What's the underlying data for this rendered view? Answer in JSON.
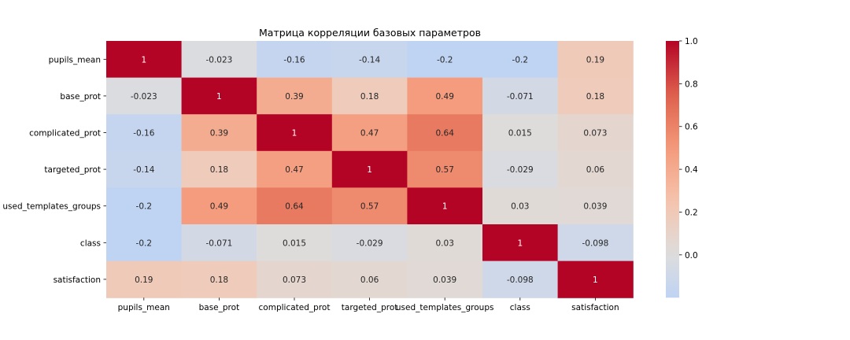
{
  "chart_data": {
    "type": "heatmap",
    "title": "Матрица корреляции базовых параметров",
    "xlabel": "",
    "ylabel": "",
    "x_labels": [
      "pupils_mean",
      "base_prot",
      "complicated_prot",
      "targeted_prot",
      "used_templates_groups",
      "class",
      "satisfaction"
    ],
    "y_labels": [
      "pupils_mean",
      "base_prot",
      "complicated_prot",
      "targeted_prot",
      "used_templates_groups",
      "class",
      "satisfaction"
    ],
    "values": [
      [
        1,
        -0.023,
        -0.16,
        -0.14,
        -0.2,
        -0.2,
        0.19
      ],
      [
        -0.023,
        1,
        0.39,
        0.18,
        0.49,
        -0.071,
        0.18
      ],
      [
        -0.16,
        0.39,
        1,
        0.47,
        0.64,
        0.015,
        0.073
      ],
      [
        -0.14,
        0.18,
        0.47,
        1,
        0.57,
        -0.029,
        0.06
      ],
      [
        -0.2,
        0.49,
        0.64,
        0.57,
        1,
        0.03,
        0.039
      ],
      [
        -0.2,
        -0.071,
        0.015,
        -0.029,
        0.03,
        1,
        -0.098
      ],
      [
        0.19,
        0.18,
        0.073,
        0.06,
        0.039,
        -0.098,
        1
      ]
    ],
    "colormap": "coolwarm",
    "vmin": -0.2,
    "vmax": 1.0,
    "colorbar_ticks": [
      "0.0",
      "0.2",
      "0.4",
      "0.6",
      "0.8",
      "1.0"
    ],
    "annotate_values": true,
    "grid": false,
    "legend_placement": "right (colorbar)"
  }
}
